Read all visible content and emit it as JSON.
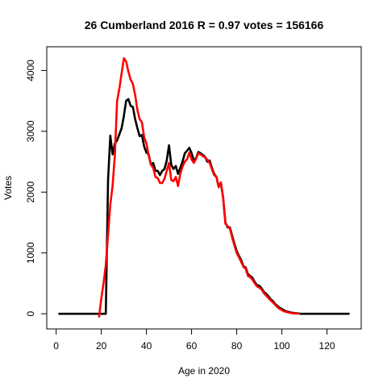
{
  "chart_data": {
    "type": "line",
    "title": "26 Cumberland 2016 R = 0.97 votes = 156166",
    "xlabel": "Age in 2020",
    "ylabel": "Votes",
    "x": [
      1,
      2,
      3,
      4,
      5,
      6,
      7,
      8,
      9,
      10,
      11,
      12,
      13,
      14,
      15,
      16,
      17,
      18,
      19,
      20,
      21,
      22,
      23,
      24,
      25,
      26,
      27,
      28,
      29,
      30,
      31,
      32,
      33,
      34,
      35,
      36,
      37,
      38,
      39,
      40,
      41,
      42,
      43,
      44,
      45,
      46,
      47,
      48,
      49,
      50,
      51,
      52,
      53,
      54,
      55,
      56,
      57,
      58,
      59,
      60,
      61,
      62,
      63,
      64,
      65,
      66,
      67,
      68,
      69,
      70,
      71,
      72,
      73,
      74,
      75,
      76,
      77,
      78,
      79,
      80,
      81,
      82,
      83,
      84,
      85,
      86,
      87,
      88,
      89,
      90,
      91,
      92,
      93,
      94,
      95,
      96,
      97,
      98,
      99,
      100,
      101,
      102,
      103,
      104,
      105,
      106,
      107,
      108,
      109,
      110,
      111,
      112,
      113,
      114,
      115,
      116,
      117,
      118,
      119,
      120,
      121,
      122,
      123,
      124,
      125,
      126,
      127,
      128,
      129,
      130
    ],
    "series": [
      {
        "color": "#000000",
        "values": [
          0,
          0,
          0,
          0,
          0,
          0,
          0,
          0,
          0,
          0,
          0,
          0,
          0,
          0,
          0,
          0,
          0,
          0,
          0,
          0,
          0,
          0,
          2200,
          2930,
          2620,
          2800,
          2850,
          2950,
          3050,
          3250,
          3500,
          3530,
          3420,
          3400,
          3200,
          3050,
          2920,
          2940,
          2750,
          2650,
          2620,
          2450,
          2480,
          2350,
          2350,
          2280,
          2350,
          2380,
          2520,
          2770,
          2450,
          2380,
          2430,
          2300,
          2400,
          2500,
          2640,
          2680,
          2730,
          2640,
          2520,
          2560,
          2660,
          2640,
          2610,
          2580,
          2500,
          2520,
          2400,
          2300,
          2250,
          2100,
          2150,
          1900,
          1500,
          1420,
          1420,
          1280,
          1150,
          1030,
          950,
          880,
          780,
          760,
          650,
          620,
          590,
          520,
          470,
          460,
          420,
          360,
          330,
          290,
          240,
          210,
          160,
          130,
          100,
          80,
          55,
          40,
          30,
          20,
          15,
          10,
          8,
          0,
          0,
          0,
          0,
          0,
          0,
          0,
          0,
          0,
          0,
          0,
          0,
          0,
          0,
          0,
          0,
          0,
          0,
          0,
          0,
          0,
          0,
          0
        ]
      },
      {
        "color": "#ff0000",
        "values": [
          null,
          null,
          null,
          null,
          null,
          null,
          null,
          null,
          null,
          null,
          null,
          null,
          null,
          null,
          null,
          null,
          null,
          null,
          -60,
          250,
          500,
          800,
          1300,
          1800,
          2100,
          2600,
          3500,
          3700,
          3950,
          4200,
          4150,
          3980,
          3850,
          3780,
          3600,
          3350,
          3200,
          3150,
          2900,
          2800,
          2600,
          2450,
          2400,
          2250,
          2230,
          2150,
          2150,
          2220,
          2350,
          2480,
          2200,
          2180,
          2250,
          2100,
          2300,
          2420,
          2500,
          2540,
          2650,
          2540,
          2480,
          2550,
          2640,
          2620,
          2590,
          2570,
          2530,
          2480,
          2380,
          2280,
          2250,
          2080,
          2160,
          1900,
          1480,
          1440,
          1400,
          1250,
          1120,
          1000,
          930,
          850,
          770,
          740,
          620,
          600,
          560,
          500,
          450,
          430,
          400,
          340,
          300,
          260,
          220,
          190,
          150,
          110,
          80,
          60,
          40,
          30,
          20,
          12,
          8,
          5,
          3,
          2,
          null,
          null,
          null,
          null,
          null,
          null,
          null,
          null,
          null,
          null,
          null,
          null,
          null,
          null,
          null,
          null,
          null,
          null,
          null,
          null,
          null,
          null
        ]
      }
    ],
    "xlim": [
      -4.16,
      135.16
    ],
    "ylim": [
      -250,
      4390
    ],
    "xticks": [
      0,
      20,
      40,
      60,
      80,
      100,
      120
    ],
    "yticks": [
      0,
      1000,
      2000,
      3000,
      4000
    ]
  }
}
